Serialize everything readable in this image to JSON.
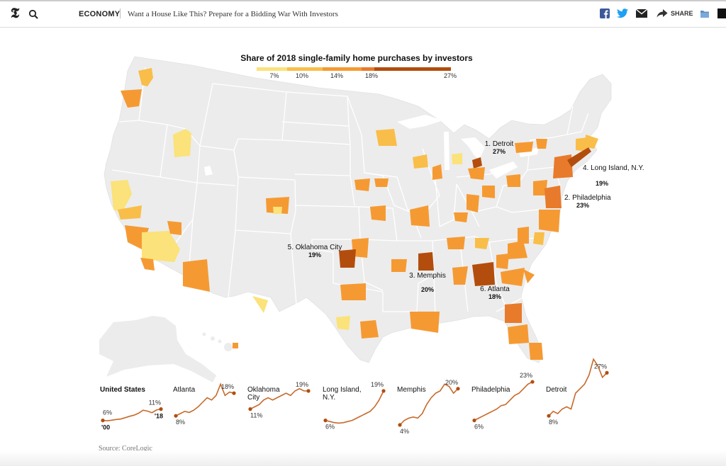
{
  "header": {
    "logo_glyph": "𝕿",
    "section": "ECONOMY",
    "headline": "Want a House Like This? Prepare for a Bidding War With Investors",
    "share_label": "SHARE",
    "icons": [
      "nyt-logo-icon",
      "search-icon",
      "facebook-icon",
      "twitter-icon",
      "email-icon",
      "share-arrow-icon",
      "save-icon",
      "more-icon"
    ]
  },
  "legend": {
    "title": "Share of 2018 single-family home purchases by investors",
    "ticks": [
      "7%",
      "10%",
      "14%",
      "18%",
      "27%"
    ],
    "colors": [
      "#fbe27a",
      "#f9be49",
      "#f59a33",
      "#e87a2c",
      "#b34d0d"
    ]
  },
  "map": {
    "land_color": "#ececec",
    "border_color": "#ffffff",
    "colors": {
      "c1": "#fbe27a",
      "c2": "#f9be49",
      "c3": "#f59a33",
      "c4": "#e87a2c",
      "c5": "#b34d0d"
    },
    "callouts": [
      {
        "rank_name": "1. Detroit",
        "value": "27%"
      },
      {
        "rank_name": "2. Philadelphia",
        "value": "23%"
      },
      {
        "rank_name": "3. Memphis",
        "value": "20%"
      },
      {
        "rank_name": "4. Long Island, N.Y.",
        "value": "19%"
      },
      {
        "rank_name": "5. Oklahoma City",
        "value": "19%"
      },
      {
        "rank_name": "6. Atlanta",
        "value": "18%"
      }
    ]
  },
  "sparklines": [
    {
      "name": "United States",
      "bold": true,
      "start_label": "6%",
      "end_label": "11%",
      "start_year": "'00",
      "end_year": "'18",
      "values": [
        6,
        5.8,
        6.1,
        6.4,
        6.6,
        7.2,
        7.8,
        8.3,
        9.2,
        10.5,
        10.1,
        9.4,
        10.6,
        11
      ]
    },
    {
      "name": "Atlanta",
      "start_label": "8%",
      "end_label": "18%",
      "values": [
        8,
        9,
        10,
        9.5,
        10.5,
        12,
        14,
        16,
        15,
        17,
        22,
        17,
        18.5,
        18
      ]
    },
    {
      "name": "Oklahoma City",
      "start_label": "11%",
      "end_label": "19%",
      "values": [
        11,
        12,
        13,
        15,
        16,
        15,
        16,
        17,
        18,
        17,
        19,
        20,
        19,
        19
      ]
    },
    {
      "name": "Long Island, N.Y.",
      "start_label": "6%",
      "end_label": "19%",
      "values": [
        6,
        5.5,
        5,
        4.8,
        5,
        5.5,
        6,
        7,
        8,
        9,
        10,
        12,
        15,
        19
      ]
    },
    {
      "name": "Memphis",
      "start_label": "4%",
      "end_label": "20%",
      "values": [
        4,
        6,
        7,
        7.5,
        7,
        9,
        13,
        16,
        18,
        19,
        22,
        21,
        18,
        20
      ]
    },
    {
      "name": "Philadelphia",
      "start_label": "6%",
      "end_label": "23%",
      "values": [
        6,
        7,
        8,
        9,
        10,
        11,
        12.5,
        13,
        15,
        17,
        18,
        20,
        22,
        23
      ]
    },
    {
      "name": "Detroit",
      "start_label": "8%",
      "end_label": "27%",
      "values": [
        8,
        10,
        9,
        11,
        12,
        11,
        18,
        20,
        22,
        26,
        33,
        30,
        25,
        27
      ]
    }
  ],
  "source": "Source: CoreLogic"
}
